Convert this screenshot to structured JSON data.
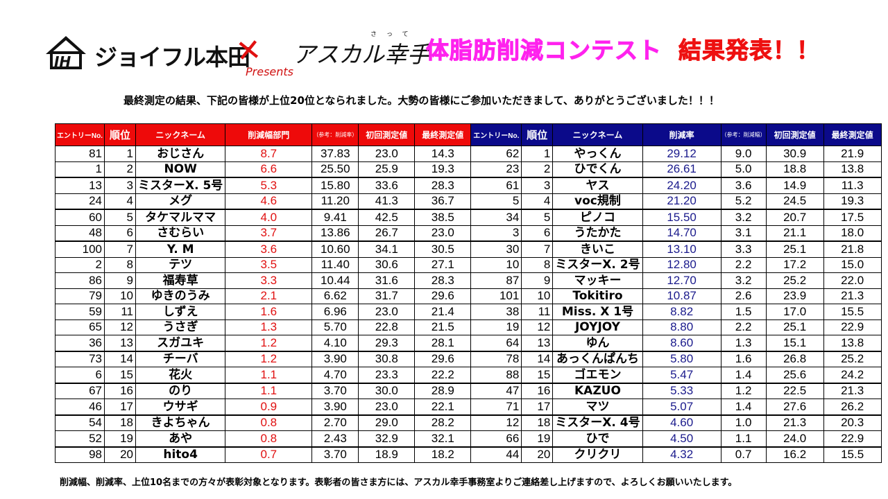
{
  "header": {
    "logo_company": "ジョイフル本田",
    "logo_cross": "✕",
    "logo_partner": "アスカル幸手",
    "logo_partner_ruby": "さって",
    "logo_presents": "Presents",
    "title_main": "体脂肪削減コンテスト",
    "title_result": "結果発表！！"
  },
  "subtitle": "最終測定の結果、下記の皆様が上位20位となられました。大勢の皆様にご参加いただきまして、ありがとうございました！！！",
  "footer": "削減幅、削減率、上位10名までの方々が表彰対象となります。表彰者の皆さま方には、アスカル幸手事務室よりご連絡差し上げますので、よろしくお願いいたします。",
  "colors": {
    "left_header": "#ee0a0a",
    "right_header": "#0b0a8a",
    "left_value": "#e01010",
    "right_value": "#1a1a8c",
    "title_pink": "#ff22ee",
    "title_red": "#ee1111"
  },
  "left_table": {
    "headers": [
      "エントリーNo.",
      "順位",
      "ニックネーム",
      "削減幅部門",
      "（参考：削減率）",
      "初回測定値",
      "最終測定値"
    ],
    "rows": [
      {
        "entry": "81",
        "rank": "1",
        "nick": "おじさん",
        "reduction": "8.7",
        "ref": "37.83",
        "first": "23.0",
        "final": "14.3"
      },
      {
        "entry": "1",
        "rank": "2",
        "nick": "NOW",
        "reduction": "6.6",
        "ref": "25.50",
        "first": "25.9",
        "final": "19.3"
      },
      {
        "entry": "13",
        "rank": "3",
        "nick": "ミスターX. 5号",
        "reduction": "5.3",
        "ref": "15.80",
        "first": "33.6",
        "final": "28.3"
      },
      {
        "entry": "24",
        "rank": "4",
        "nick": "メグ",
        "reduction": "4.6",
        "ref": "11.20",
        "first": "41.3",
        "final": "36.7"
      },
      {
        "entry": "60",
        "rank": "5",
        "nick": "タケマルママ",
        "reduction": "4.0",
        "ref": "9.41",
        "first": "42.5",
        "final": "38.5"
      },
      {
        "entry": "48",
        "rank": "6",
        "nick": "さむらい",
        "reduction": "3.7",
        "ref": "13.86",
        "first": "26.7",
        "final": "23.0"
      },
      {
        "entry": "100",
        "rank": "7",
        "nick": "Y. M",
        "reduction": "3.6",
        "ref": "10.60",
        "first": "34.1",
        "final": "30.5"
      },
      {
        "entry": "2",
        "rank": "8",
        "nick": "テツ",
        "reduction": "3.5",
        "ref": "11.40",
        "first": "30.6",
        "final": "27.1"
      },
      {
        "entry": "86",
        "rank": "9",
        "nick": "福寿草",
        "reduction": "3.3",
        "ref": "10.44",
        "first": "31.6",
        "final": "28.3"
      },
      {
        "entry": "79",
        "rank": "10",
        "nick": "ゆきのうみ",
        "reduction": "2.1",
        "ref": "6.62",
        "first": "31.7",
        "final": "29.6"
      },
      {
        "entry": "59",
        "rank": "11",
        "nick": "しずえ",
        "reduction": "1.6",
        "ref": "6.96",
        "first": "23.0",
        "final": "21.4"
      },
      {
        "entry": "65",
        "rank": "12",
        "nick": "うさぎ",
        "reduction": "1.3",
        "ref": "5.70",
        "first": "22.8",
        "final": "21.5"
      },
      {
        "entry": "36",
        "rank": "13",
        "nick": "スガユキ",
        "reduction": "1.2",
        "ref": "4.10",
        "first": "29.3",
        "final": "28.1"
      },
      {
        "entry": "73",
        "rank": "14",
        "nick": "チーバ",
        "reduction": "1.2",
        "ref": "3.90",
        "first": "30.8",
        "final": "29.6"
      },
      {
        "entry": "6",
        "rank": "15",
        "nick": "花火",
        "reduction": "1.1",
        "ref": "4.70",
        "first": "23.3",
        "final": "22.2"
      },
      {
        "entry": "67",
        "rank": "16",
        "nick": "のり",
        "reduction": "1.1",
        "ref": "3.70",
        "first": "30.0",
        "final": "28.9"
      },
      {
        "entry": "46",
        "rank": "17",
        "nick": "ウサギ",
        "reduction": "0.9",
        "ref": "3.90",
        "first": "23.0",
        "final": "22.1"
      },
      {
        "entry": "54",
        "rank": "18",
        "nick": "きよちゃん",
        "reduction": "0.8",
        "ref": "2.70",
        "first": "29.0",
        "final": "28.2"
      },
      {
        "entry": "52",
        "rank": "19",
        "nick": "あや",
        "reduction": "0.8",
        "ref": "2.43",
        "first": "32.9",
        "final": "32.1"
      },
      {
        "entry": "98",
        "rank": "20",
        "nick": "hito4",
        "reduction": "0.7",
        "ref": "3.70",
        "first": "18.9",
        "final": "18.2"
      }
    ]
  },
  "right_table": {
    "headers": [
      "エントリーNo.",
      "順位",
      "ニックネーム",
      "削減率",
      "（参考：削減幅）",
      "初回測定値",
      "最終測定値"
    ],
    "rows": [
      {
        "entry": "62",
        "rank": "1",
        "nick": "やっくん",
        "rate": "29.12",
        "ref": "9.0",
        "first": "30.9",
        "final": "21.9"
      },
      {
        "entry": "23",
        "rank": "2",
        "nick": "ひでくん",
        "rate": "26.61",
        "ref": "5.0",
        "first": "18.8",
        "final": "13.8"
      },
      {
        "entry": "61",
        "rank": "3",
        "nick": "ヤス",
        "rate": "24.20",
        "ref": "3.6",
        "first": "14.9",
        "final": "11.3"
      },
      {
        "entry": "5",
        "rank": "4",
        "nick": "voc規制",
        "rate": "21.20",
        "ref": "5.2",
        "first": "24.5",
        "final": "19.3"
      },
      {
        "entry": "34",
        "rank": "5",
        "nick": "ピノコ",
        "rate": "15.50",
        "ref": "3.2",
        "first": "20.7",
        "final": "17.5"
      },
      {
        "entry": "3",
        "rank": "6",
        "nick": "うたかた",
        "rate": "14.70",
        "ref": "3.1",
        "first": "21.1",
        "final": "18.0"
      },
      {
        "entry": "30",
        "rank": "7",
        "nick": "きいこ",
        "rate": "13.10",
        "ref": "3.3",
        "first": "25.1",
        "final": "21.8"
      },
      {
        "entry": "10",
        "rank": "8",
        "nick": "ミスターX. 2号",
        "rate": "12.80",
        "ref": "2.2",
        "first": "17.2",
        "final": "15.0"
      },
      {
        "entry": "87",
        "rank": "9",
        "nick": "マッキー",
        "rate": "12.70",
        "ref": "3.2",
        "first": "25.2",
        "final": "22.0"
      },
      {
        "entry": "101",
        "rank": "10",
        "nick": "Tokitiro",
        "rate": "10.87",
        "ref": "2.6",
        "first": "23.9",
        "final": "21.3"
      },
      {
        "entry": "38",
        "rank": "11",
        "nick": "Miss. X  1号",
        "rate": "8.82",
        "ref": "1.5",
        "first": "17.0",
        "final": "15.5"
      },
      {
        "entry": "19",
        "rank": "12",
        "nick": "JOYJOY",
        "rate": "8.80",
        "ref": "2.2",
        "first": "25.1",
        "final": "22.9"
      },
      {
        "entry": "64",
        "rank": "13",
        "nick": "ゆん",
        "rate": "8.60",
        "ref": "1.3",
        "first": "15.1",
        "final": "13.8"
      },
      {
        "entry": "78",
        "rank": "14",
        "nick": "あっくんぱんち",
        "rate": "5.80",
        "ref": "1.6",
        "first": "26.8",
        "final": "25.2"
      },
      {
        "entry": "88",
        "rank": "15",
        "nick": "ゴエモン",
        "rate": "5.47",
        "ref": "1.4",
        "first": "25.6",
        "final": "24.2"
      },
      {
        "entry": "47",
        "rank": "16",
        "nick": "KAZUO",
        "rate": "5.33",
        "ref": "1.2",
        "first": "22.5",
        "final": "21.3"
      },
      {
        "entry": "71",
        "rank": "17",
        "nick": "マツ",
        "rate": "5.07",
        "ref": "1.4",
        "first": "27.6",
        "final": "26.2"
      },
      {
        "entry": "12",
        "rank": "18",
        "nick": "ミスターX. 4号",
        "rate": "4.60",
        "ref": "1.0",
        "first": "21.3",
        "final": "20.3"
      },
      {
        "entry": "66",
        "rank": "19",
        "nick": "ひで",
        "rate": "4.50",
        "ref": "1.1",
        "first": "24.0",
        "final": "22.9"
      },
      {
        "entry": "44",
        "rank": "20",
        "nick": "クリクリ",
        "rate": "4.32",
        "ref": "0.7",
        "first": "16.2",
        "final": "15.5"
      }
    ]
  }
}
